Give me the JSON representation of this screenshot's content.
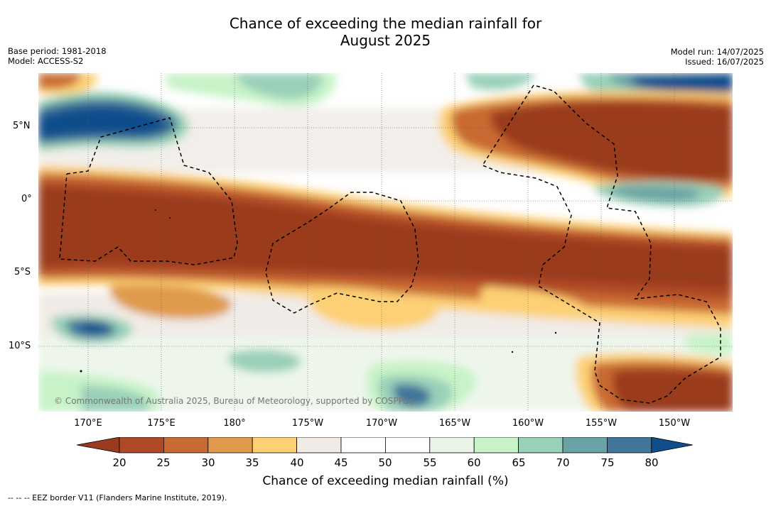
{
  "title_line1": "Chance of exceeding the median rainfall for",
  "title_line2": "August 2025",
  "meta_left": {
    "base_period": "Base period: 1981-2018",
    "model": "Model: ACCESS-S2"
  },
  "meta_right": {
    "model_run": "Model run: 14/07/2025",
    "issued": "Issued: 16/07/2025"
  },
  "lat_labels": [
    "5°N",
    "0°",
    "5°S",
    "10°S"
  ],
  "lon_labels": [
    "170°E",
    "175°E",
    "180°",
    "175°W",
    "170°W",
    "165°W",
    "160°W",
    "155°W",
    "150°W"
  ],
  "copyright": "© Commonwealth of Australia 2025, Bureau of Meteorology, supported by COSPPac",
  "colorbar": {
    "ticks": [
      "20",
      "25",
      "30",
      "35",
      "40",
      "45",
      "50",
      "55",
      "60",
      "65",
      "70",
      "75",
      "80"
    ],
    "colors": [
      "#9a3a1f",
      "#b04a26",
      "#c96a33",
      "#df9a4b",
      "#fdd074",
      "#f0ebe6",
      "#ffffff",
      "#ffffff",
      "#e9f3e6",
      "#c8f3c8",
      "#99d0b8",
      "#6aa3a5",
      "#3f769a",
      "#0f4d8c"
    ],
    "label": "Chance of exceeding median rainfall (%)"
  },
  "footnote": "-- -- -- EEZ border V11 (Flanders Marine Institute, 2019)."
}
